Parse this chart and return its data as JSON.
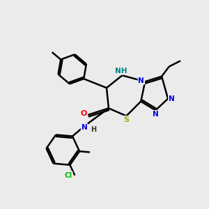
{
  "bg_color": "#ebebeb",
  "atoms": {
    "C": "#000000",
    "N": "#0000dd",
    "N_NH": "#008080",
    "O": "#ff0000",
    "S": "#aaaa00",
    "Cl": "#00bb00"
  },
  "bond_color": "#000000",
  "bond_width": 1.8,
  "figsize": [
    3.0,
    3.0
  ],
  "dpi": 100,
  "xlim": [
    0,
    10
  ],
  "ylim": [
    0,
    10
  ]
}
